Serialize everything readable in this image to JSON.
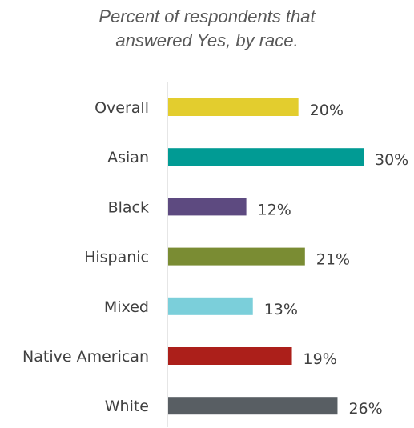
{
  "chart_data": {
    "type": "bar",
    "orientation": "horizontal",
    "title_lines": [
      "Percent of respondents that",
      "answered Yes, by race."
    ],
    "xlabel": "",
    "ylabel": "",
    "xlim": [
      0,
      30
    ],
    "grid": false,
    "legend": "none",
    "categories": [
      "Overall",
      "Asian",
      "Black",
      "Hispanic",
      "Mixed",
      "Native American",
      "White"
    ],
    "values": [
      20,
      30,
      12,
      21,
      13,
      19,
      26
    ],
    "value_labels": [
      "20%",
      "30%",
      "12%",
      "21%",
      "13%",
      "19%",
      "26%"
    ],
    "colors": [
      "#E3CD2E",
      "#019B94",
      "#5D4A80",
      "#7A8C33",
      "#7BCFDA",
      "#AC1F1A",
      "#585E63"
    ],
    "axis_color": "#D9D9D9"
  }
}
